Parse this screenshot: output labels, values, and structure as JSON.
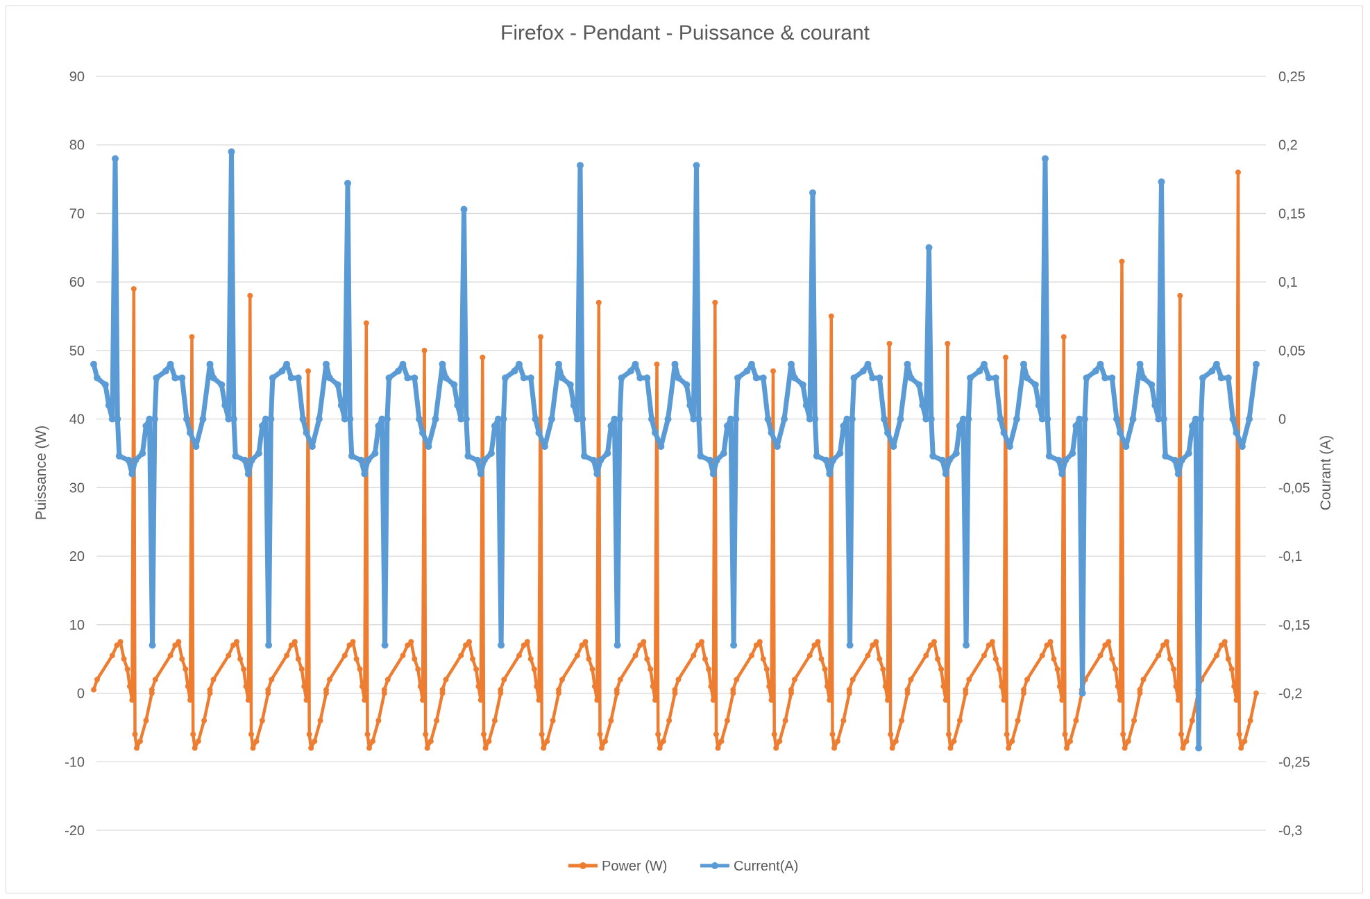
{
  "chart_data": {
    "type": "line",
    "title": "Firefox - Pendant - Puissance & courant",
    "xlabel": "",
    "y_left": {
      "label": "Puissance (W)",
      "lim": [
        -20,
        90
      ],
      "tick_values": [
        90,
        80,
        70,
        60,
        50,
        40,
        30,
        20,
        10,
        0,
        -10,
        -20
      ],
      "tick_labels": [
        "90",
        "80",
        "70",
        "60",
        "50",
        "40",
        "30",
        "20",
        "10",
        "0",
        "-10",
        "-20"
      ]
    },
    "y_right": {
      "label": "Courant (A)",
      "lim": [
        -0.3,
        0.25
      ],
      "tick_values": [
        0.25,
        0.2,
        0.15,
        0.1,
        0.05,
        0,
        -0.05,
        -0.1,
        -0.15,
        -0.2,
        -0.25,
        -0.3
      ],
      "tick_labels": [
        "0,25",
        "0,2",
        "0,15",
        "0,1",
        "0,05",
        "0",
        "-0,05",
        "-0,1",
        "-0,15",
        "-0,2",
        "-0,25",
        "-0,3"
      ]
    },
    "grid": true,
    "legend_position": "bottom",
    "series": [
      {
        "name": "Power (W)",
        "axis": "left",
        "color": "#ed7d31",
        "peaks": [
          59,
          52,
          58,
          47,
          54,
          50,
          49,
          52,
          57,
          48,
          57,
          47,
          55,
          51,
          51,
          49,
          52,
          63,
          58,
          76
        ],
        "baseline_min": -8,
        "baseline_max": 7.5
      },
      {
        "name": "Current(A)",
        "axis": "right",
        "color": "#5b9bd5",
        "peaks": [
          0.19,
          0.195,
          0.172,
          0.153,
          0.185,
          0.185,
          0.165,
          0.125,
          0.19,
          0.173
        ],
        "troughs": [
          -0.165,
          -0.165,
          -0.165,
          -0.165,
          -0.165,
          -0.165,
          -0.165,
          -0.165,
          -0.2,
          -0.24
        ],
        "high_plateau": 0.03,
        "low_plateau": -0.03
      }
    ]
  },
  "legend": {
    "power_label": "Power (W)",
    "current_label": "Current(A)"
  }
}
